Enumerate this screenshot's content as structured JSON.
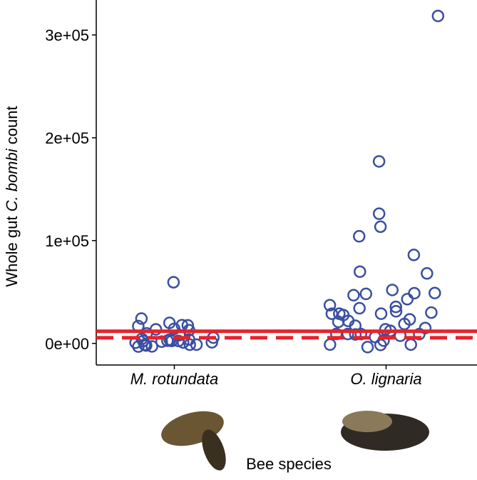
{
  "chart_data": {
    "type": "strip",
    "x_label": "Bee species",
    "y_label": [
      {
        "text": "Whole gut "
      },
      {
        "text": "C. bombi",
        "italic": true
      },
      {
        "text": " count"
      }
    ],
    "categories": [
      "M. rotundata",
      "O. lignaria"
    ],
    "color": "#3a4fa0",
    "groups": [
      {
        "values": [
          60000,
          22000,
          20000,
          20000,
          17000,
          16000,
          14000,
          12000,
          10000,
          8000,
          6000,
          5000,
          4000,
          3000,
          3000,
          2000,
          2000,
          1500,
          1000,
          1000,
          500,
          500,
          300,
          200,
          100,
          100,
          50,
          0,
          0,
          0
        ]
      },
      {
        "values": [
          317000,
          177000,
          129000,
          113000,
          102000,
          83000,
          72000,
          72000,
          52000,
          50000,
          48000,
          47000,
          46000,
          45000,
          38000,
          36000,
          35000,
          33000,
          32000,
          31000,
          30000,
          28000,
          26000,
          25000,
          22000,
          20000,
          18000,
          17000,
          15000,
          12000,
          10000,
          9000,
          8000,
          7000,
          6000,
          5000,
          4000,
          3000,
          2000,
          1000,
          500,
          0,
          0
        ]
      }
    ],
    "reference_lines": [
      {
        "value": 11800,
        "style": "solid",
        "color": "#e8212a"
      },
      {
        "value": 5500,
        "style": "dashed",
        "color": "#e8212a"
      }
    ],
    "ylim": [
      -21000,
      334000
    ],
    "yticks": [
      {
        "value": 0,
        "label": "0e+00"
      },
      {
        "value": 100000,
        "label": "1e+05"
      },
      {
        "value": 200000,
        "label": "2e+05"
      },
      {
        "value": 300000,
        "label": "3e+05"
      }
    ]
  }
}
